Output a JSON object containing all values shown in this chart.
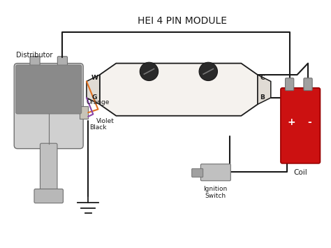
{
  "title": "HEI 4 PIN MODULE",
  "bg_color": "#ffffff",
  "distributor_label": "Distributor",
  "coil_label": "Coil",
  "ignition_label": "Ignition\nSwitch",
  "wire_labels": [
    "Orange",
    "Violet",
    "Black"
  ],
  "wire_colors": [
    "#e07020",
    "#8844aa",
    "#1a1a1a"
  ],
  "plus_label": "+",
  "minus_label": "-",
  "black": "#1a1a1a",
  "dgray": "#707070",
  "lgray": "#c8c8c8",
  "mgray": "#a0a0a0",
  "darkgray": "#888888",
  "coil_red": "#cc1111",
  "module_fill": "#f5f2ee",
  "module_edge": "#1a1a1a"
}
